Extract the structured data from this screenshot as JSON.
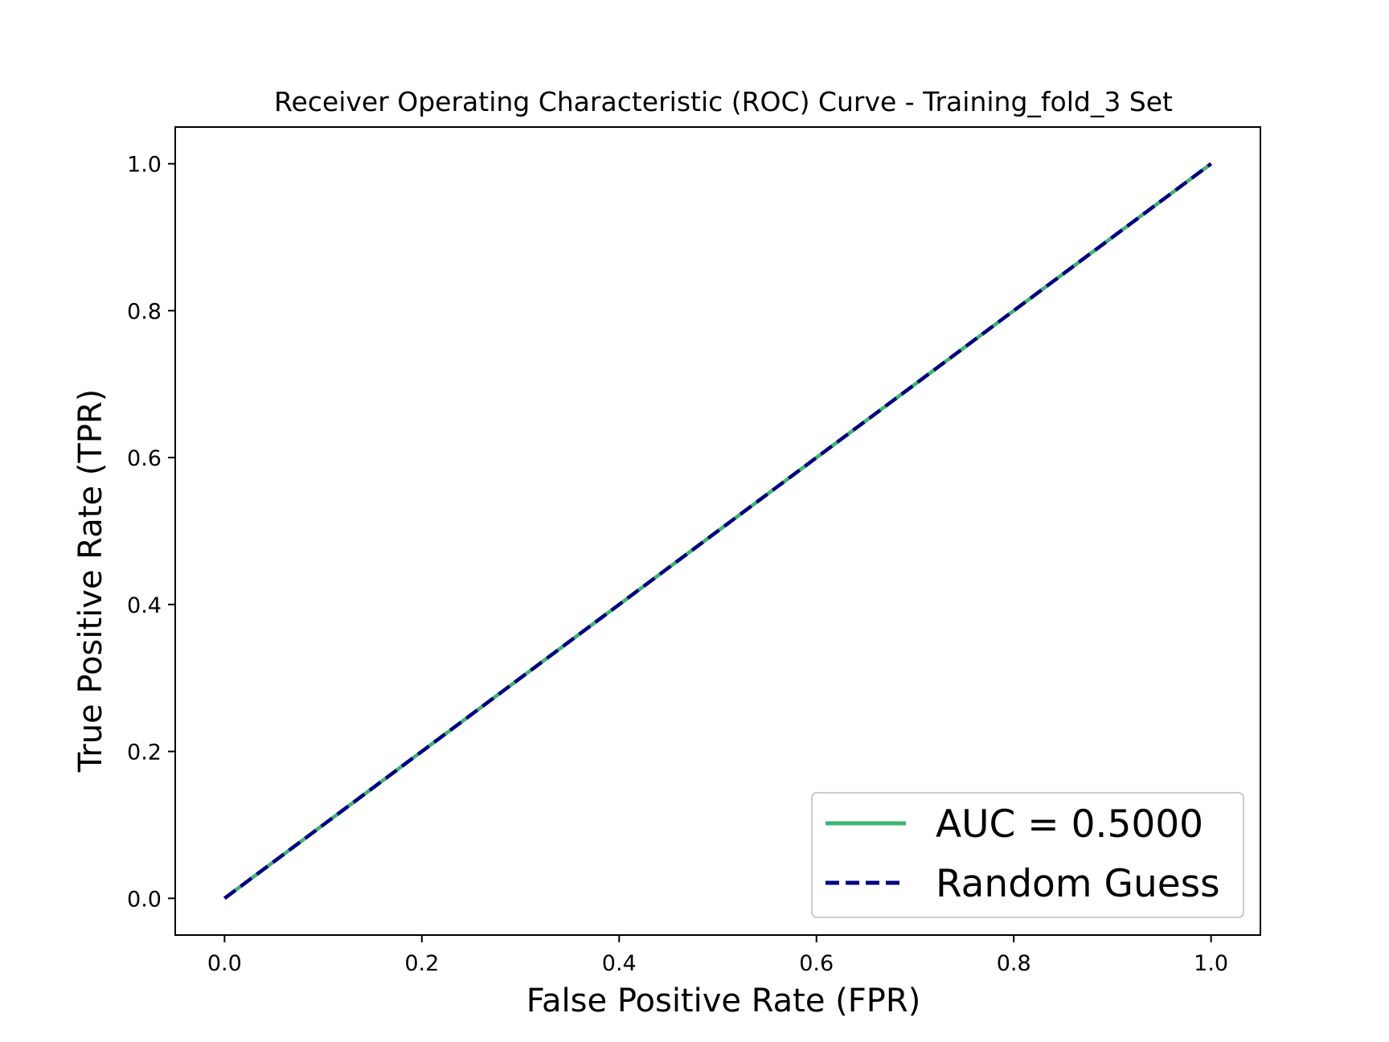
{
  "chart_data": {
    "type": "line",
    "title": "Receiver Operating Characteristic (ROC) Curve - Training_fold_3 Set",
    "xlabel": "False Positive Rate (FPR)",
    "ylabel": "True Positive Rate (TPR)",
    "xlim": [
      -0.05,
      1.05
    ],
    "ylim": [
      -0.05,
      1.05
    ],
    "xticks": [
      "0.0",
      "0.2",
      "0.4",
      "0.6",
      "0.8",
      "1.0"
    ],
    "yticks": [
      "0.0",
      "0.2",
      "0.4",
      "0.6",
      "0.8",
      "1.0"
    ],
    "grid": false,
    "legend_position": "lower-right",
    "series": [
      {
        "name": "AUC = 0.5000",
        "x": [
          0.0,
          1.0
        ],
        "y": [
          0.0,
          1.0
        ],
        "color": "#3cb371",
        "style": "solid"
      },
      {
        "name": "Random Guess",
        "x": [
          0.0,
          1.0
        ],
        "y": [
          0.0,
          1.0
        ],
        "color": "#000080",
        "style": "dashed"
      }
    ]
  }
}
